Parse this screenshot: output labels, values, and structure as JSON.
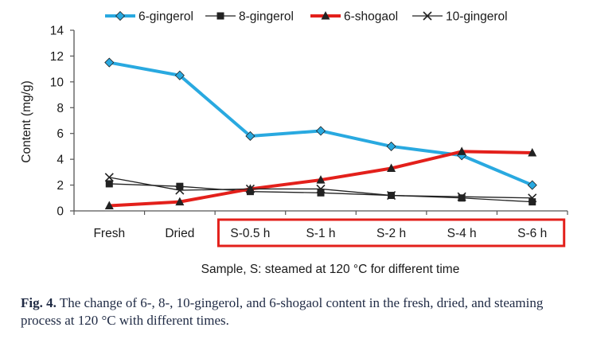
{
  "chart_data": {
    "type": "line",
    "categories": [
      "Fresh",
      "Dried",
      "S-0.5 h",
      "S-1 h",
      "S-2 h",
      "S-4 h",
      "S-6 h"
    ],
    "series": [
      {
        "name": "6-gingerol",
        "marker": "diamond",
        "color": "#29a9e0",
        "values": [
          11.5,
          10.5,
          5.8,
          6.2,
          5.0,
          4.3,
          2.0
        ]
      },
      {
        "name": "8-gingerol",
        "marker": "square",
        "color": "#222222",
        "values": [
          2.1,
          1.9,
          1.5,
          1.4,
          1.2,
          1.0,
          0.7
        ]
      },
      {
        "name": "6-shogaol",
        "marker": "triangle",
        "color": "#e3201b",
        "values": [
          0.4,
          0.7,
          1.7,
          2.4,
          3.3,
          4.6,
          4.5
        ]
      },
      {
        "name": "10-gingerol",
        "marker": "x",
        "color": "#222222",
        "values": [
          2.6,
          1.6,
          1.7,
          1.7,
          1.2,
          1.1,
          1.0
        ]
      }
    ],
    "xlabel": "Sample, S: steamed at 120 °C for different time",
    "ylabel": "Content (mg/g)",
    "ylim": [
      0,
      14
    ],
    "yticks": [
      0,
      2,
      4,
      6,
      8,
      10,
      12,
      14
    ],
    "grid": false,
    "legend": "top",
    "highlight": {
      "categories": [
        "S-0.5 h",
        "S-1 h",
        "S-2 h",
        "S-4 h",
        "S-6 h"
      ],
      "color": "#e3201b"
    }
  },
  "caption": {
    "label": "Fig. 4.",
    "text": "The change of 6-, 8-, 10-gingerol, and 6-shogaol content in the fresh, dried, and steaming process at 120 °C with different times."
  }
}
